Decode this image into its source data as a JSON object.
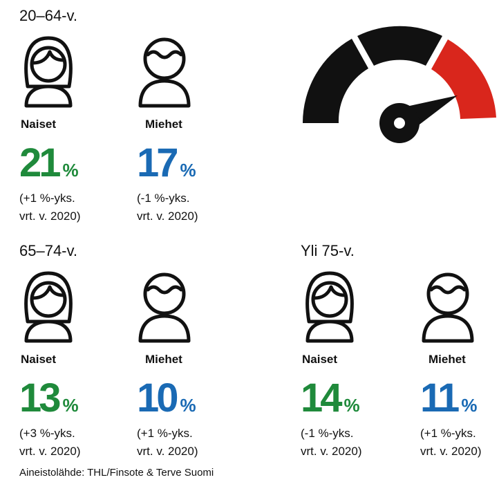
{
  "groups": [
    {
      "title": "20–64-v.",
      "people": [
        {
          "label": "Naiset",
          "value": 21,
          "unit": "%",
          "color": "#1f8a3b",
          "change": [
            "(+1 %-yks.",
            "vrt. v. 2020)"
          ]
        },
        {
          "label": "Miehet",
          "value": 17,
          "unit": "%",
          "color": "#1a6ab4",
          "change": [
            "(-1 %-yks.",
            "vrt. v. 2020)"
          ]
        }
      ]
    },
    {
      "title": "65–74-v.",
      "people": [
        {
          "label": "Naiset",
          "value": 13,
          "unit": "%",
          "color": "#1f8a3b",
          "change": [
            "(+3 %-yks.",
            "vrt. v. 2020)"
          ]
        },
        {
          "label": "Miehet",
          "value": 10,
          "unit": "%",
          "color": "#1a6ab4",
          "change": [
            "(+1 %-yks.",
            "vrt. v. 2020)"
          ]
        }
      ]
    },
    {
      "title": "Yli 75-v.",
      "people": [
        {
          "label": "Naiset",
          "value": 14,
          "unit": "%",
          "color": "#1f8a3b",
          "change": [
            "(-1 %-yks.",
            "vrt. v. 2020)"
          ]
        },
        {
          "label": "Miehet",
          "value": 11,
          "unit": "%",
          "color": "#1a6ab4",
          "change": [
            "(+1 %-yks.",
            "vrt. v. 2020)"
          ]
        }
      ]
    }
  ],
  "source": "Aineistolähde: THL/Finsote & Terve Suomi"
}
